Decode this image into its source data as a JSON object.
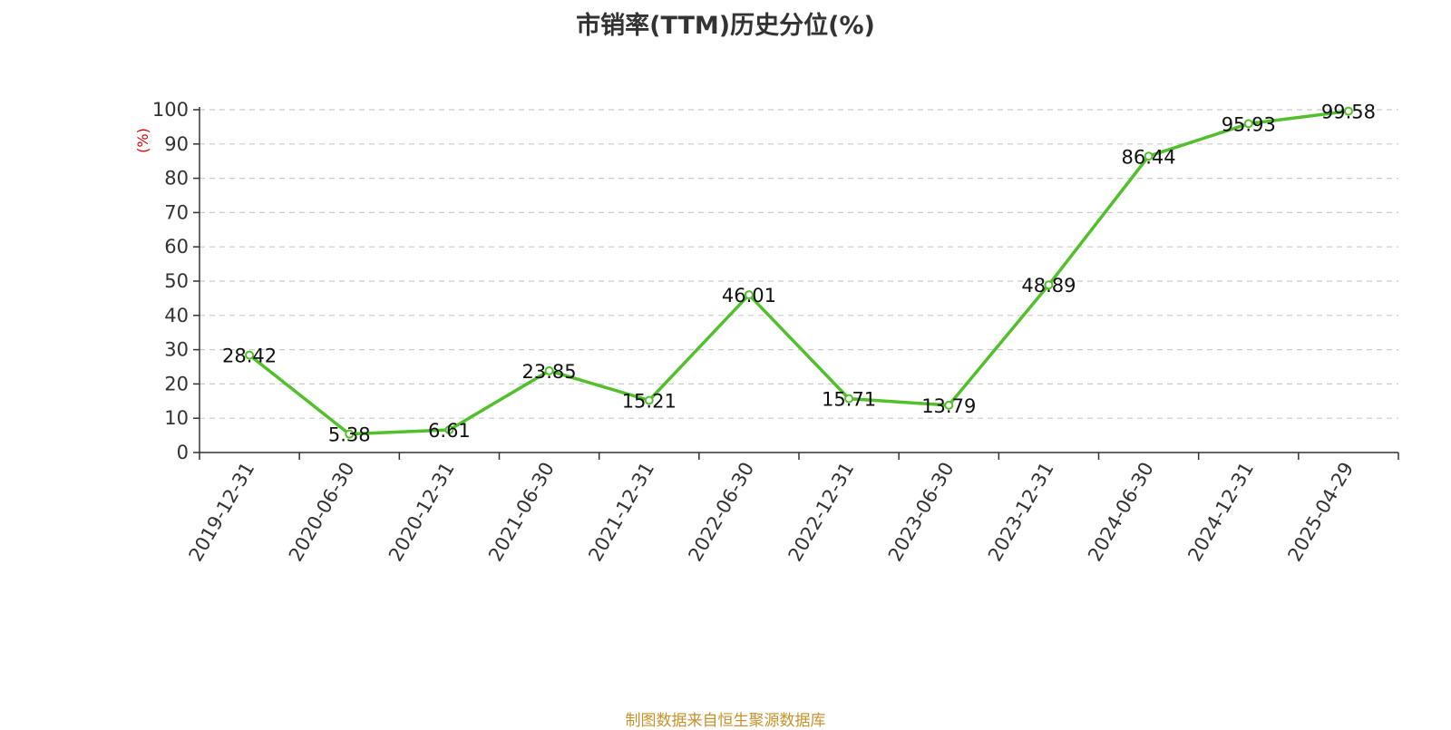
{
  "chart_data": {
    "type": "line",
    "title": "市销率(TTM)历史分位(%)",
    "xlabel": "",
    "ylabel": "(%)",
    "ylim": [
      0,
      100
    ],
    "yticks": [
      0,
      10,
      20,
      30,
      40,
      50,
      60,
      70,
      80,
      90,
      100
    ],
    "grid": true,
    "legend": "none",
    "categories": [
      "2019-12-31",
      "2020-06-30",
      "2020-12-31",
      "2021-06-30",
      "2021-12-31",
      "2022-06-30",
      "2022-12-31",
      "2023-06-30",
      "2023-12-31",
      "2024-06-30",
      "2024-12-31",
      "2025-04-29"
    ],
    "series": [
      {
        "values": [
          28.42,
          5.38,
          6.61,
          23.85,
          15.21,
          46.01,
          15.71,
          13.79,
          48.89,
          86.44,
          95.93,
          99.58
        ],
        "labels": [
          "28.42",
          "5.38",
          "6.61",
          "23.85",
          "15.21",
          "46.01",
          "15.71",
          "13.79",
          "48.89",
          "86.44",
          "95.93",
          "99.58"
        ]
      }
    ]
  },
  "source_note": "制图数据来自恒生聚源数据库",
  "colors": {
    "line": "#52c02b",
    "grid": "#cccccc",
    "axis": "#333333",
    "ylabel": "#e00000",
    "source": "#c8922a"
  }
}
